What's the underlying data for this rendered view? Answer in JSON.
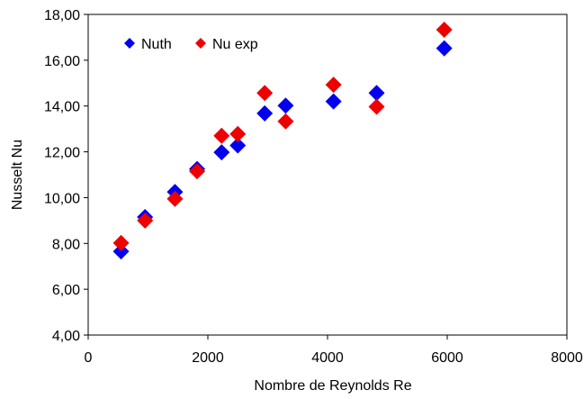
{
  "chart_data": {
    "type": "scatter",
    "xlabel": "Nombre de Reynolds Re",
    "ylabel": "Nusselt Nu",
    "xlim": [
      0,
      8000
    ],
    "ylim": [
      4,
      18
    ],
    "x_ticks": [
      0,
      2000,
      4000,
      6000,
      8000
    ],
    "x_tick_labels": [
      "0",
      "2000",
      "4000",
      "6000",
      "8000"
    ],
    "y_ticks": [
      4,
      6,
      8,
      10,
      12,
      14,
      16,
      18
    ],
    "y_tick_labels": [
      "4,00",
      "6,00",
      "8,00",
      "10,00",
      "12,00",
      "14,00",
      "16,00",
      "18,00"
    ],
    "grid": false,
    "legend_position": "top-left",
    "series": [
      {
        "name": "Nuth",
        "color": "#0000ee",
        "marker": "diamond",
        "points": [
          {
            "x": 550,
            "y": 7.65
          },
          {
            "x": 950,
            "y": 9.15
          },
          {
            "x": 1450,
            "y": 10.25
          },
          {
            "x": 1820,
            "y": 11.25
          },
          {
            "x": 2230,
            "y": 11.98
          },
          {
            "x": 2500,
            "y": 12.28
          },
          {
            "x": 2950,
            "y": 13.68
          },
          {
            "x": 3300,
            "y": 14.02
          },
          {
            "x": 4100,
            "y": 14.2
          },
          {
            "x": 4820,
            "y": 14.57
          },
          {
            "x": 5950,
            "y": 16.52
          }
        ]
      },
      {
        "name": "Nu exp",
        "color": "#ee0000",
        "marker": "diamond",
        "points": [
          {
            "x": 550,
            "y": 8.02
          },
          {
            "x": 950,
            "y": 9.0
          },
          {
            "x": 1450,
            "y": 9.95
          },
          {
            "x": 1820,
            "y": 11.15
          },
          {
            "x": 2230,
            "y": 12.7
          },
          {
            "x": 2500,
            "y": 12.78
          },
          {
            "x": 2950,
            "y": 14.57
          },
          {
            "x": 3300,
            "y": 13.33
          },
          {
            "x": 4100,
            "y": 14.93
          },
          {
            "x": 4820,
            "y": 13.97
          },
          {
            "x": 5950,
            "y": 17.33
          }
        ]
      }
    ]
  }
}
